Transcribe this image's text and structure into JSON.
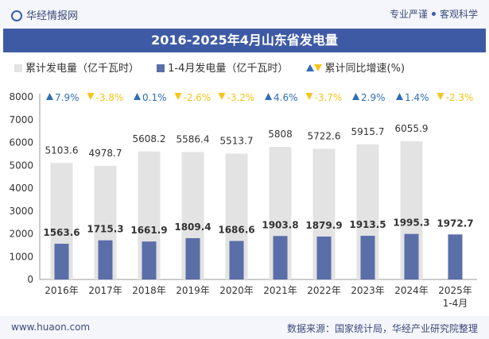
{
  "header": {
    "brand": "华经情报网",
    "slogan_left": "专业严谨",
    "slogan_right": "客观科学"
  },
  "colors": {
    "bar_total": "#e3e3e3",
    "bar_period": "#5a6ea8",
    "growth_up": "#2f6eb5",
    "growth_down": "#f5c518",
    "title_bg": "#3f5aa5"
  },
  "chart_data": {
    "type": "bar",
    "title": "2016-2025年4月山东省发电量",
    "categories": [
      "2016年",
      "2017年",
      "2018年",
      "2019年",
      "2020年",
      "2021年",
      "2022年",
      "2023年",
      "2024年",
      "2025年\n1-4月"
    ],
    "series": [
      {
        "name": "累计发电量（亿千瓦时）",
        "values": [
          5103.6,
          4978.7,
          5608.2,
          5586.4,
          5513.7,
          5808,
          5722.6,
          5915.7,
          6055.9,
          null
        ]
      },
      {
        "name": "1-4月发电量（亿千瓦时）",
        "values": [
          1563.6,
          1715.3,
          1661.9,
          1809.4,
          1686.6,
          1903.8,
          1879.9,
          1913.5,
          1995.3,
          1972.7
        ]
      }
    ],
    "growth": {
      "name": "累计同比增速(%)",
      "values": [
        7.9,
        -3.8,
        0.1,
        -2.6,
        -3.2,
        4.6,
        -3.7,
        2.9,
        1.4,
        -2.3
      ]
    },
    "ylim": [
      0,
      8000
    ],
    "yticks": [
      0,
      1000,
      2000,
      3000,
      4000,
      5000,
      6000,
      7000,
      8000
    ],
    "grid": false,
    "legend": "top"
  },
  "footer": {
    "site": "www.huaon.com",
    "source": "数据来源：国家统计局，华经产业研究院整理"
  }
}
